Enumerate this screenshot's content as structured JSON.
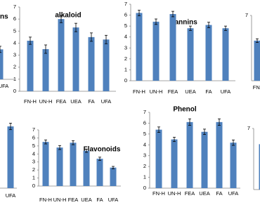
{
  "chart_data": [
    {
      "type": "bar",
      "title": "ns",
      "categories": [
        "UFA"
      ],
      "values": [
        2.9
      ],
      "errors": [
        0.3
      ],
      "color": "#4f81bd",
      "ylim": [
        0,
        7
      ]
    },
    {
      "type": "bar",
      "title": "alkaloid",
      "categories": [
        "FN-H",
        "UN-H",
        "FEA",
        "UEA",
        "FA",
        "UFA"
      ],
      "values": [
        4.2,
        3.5,
        6.0,
        5.3,
        4.5,
        4.3
      ],
      "errors": [
        0.3,
        0.35,
        0.3,
        0.35,
        0.35,
        0.35
      ],
      "color": "#4f81bd",
      "ylim": [
        0,
        7
      ],
      "yticks": [
        0,
        1,
        2,
        3,
        4,
        5,
        6,
        7
      ]
    },
    {
      "type": "bar",
      "title": "Tannins",
      "categories": [
        "FN-H",
        "UN-H",
        "FEA",
        "UEA",
        "FA",
        "UFA"
      ],
      "values": [
        6.2,
        5.4,
        6.1,
        4.8,
        5.1,
        4.8
      ],
      "errors": [
        0.25,
        0.25,
        0.25,
        0.2,
        0.25,
        0.2
      ],
      "color": "#4f81bd",
      "ylim": [
        0,
        7
      ],
      "yticks": [
        0,
        1,
        2,
        3,
        4,
        5,
        6,
        7
      ]
    },
    {
      "type": "bar",
      "categories": [
        "FN-"
      ],
      "values": [
        4.3
      ],
      "errors": [
        0.2
      ],
      "color": "#4f81bd",
      "ylim": [
        0,
        7
      ],
      "yticks": [
        7
      ]
    },
    {
      "type": "bar",
      "categories": [
        "UFA"
      ],
      "values": [
        5.7
      ],
      "errors": [
        0.3
      ],
      "color": "#4f81bd",
      "ylim": [
        0,
        7
      ]
    },
    {
      "type": "bar",
      "title": "Flavonoids",
      "categories": [
        "FN-H",
        "UN-H",
        "FEA",
        "UEA",
        "FA",
        "UFA"
      ],
      "values": [
        5.5,
        4.8,
        5.4,
        4.4,
        3.4,
        2.3
      ],
      "errors": [
        0.25,
        0.25,
        0.25,
        0.2,
        0.2,
        0.15
      ],
      "color": "#4f81bd",
      "ylim": [
        0,
        7
      ],
      "yticks": [
        0,
        1,
        2,
        3,
        4,
        5,
        6,
        7
      ]
    },
    {
      "type": "bar",
      "title": "Phenol",
      "categories": [
        "FN-H",
        "UN-H",
        "FEA",
        "UEA",
        "FA",
        "UFA"
      ],
      "values": [
        5.4,
        4.5,
        6.1,
        5.2,
        6.1,
        4.2
      ],
      "errors": [
        0.25,
        0.2,
        0.3,
        0.25,
        0.3,
        0.25
      ],
      "color": "#4f81bd",
      "ylim": [
        0,
        7
      ],
      "yticks": [
        0,
        1,
        2,
        3,
        4,
        5,
        6,
        7
      ]
    },
    {
      "type": "bar",
      "categories": [
        "F"
      ],
      "values": [
        5.2
      ],
      "color": "#4f81bd",
      "ylim": [
        0,
        7
      ],
      "yticks": [
        7
      ]
    }
  ]
}
